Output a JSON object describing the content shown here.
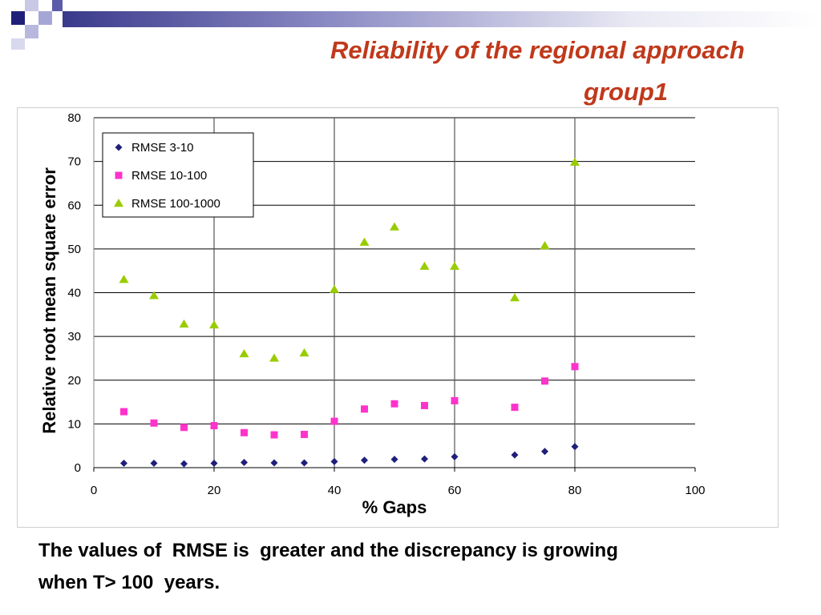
{
  "slide": {
    "title_line1": "Reliability of the regional approach",
    "title_line2": "group1",
    "caption": "The values of  RMSE is  greater and the discrepancy is growing\nwhen T> 100  years."
  },
  "colors": {
    "title": "#c0391b",
    "series_rmse_3_10": "#1f1f7a",
    "series_rmse_10_100": "#ff33cc",
    "series_rmse_100_1000": "#99cc00"
  },
  "chart_data": {
    "type": "scatter",
    "title": "",
    "xlabel": "% Gaps",
    "ylabel": "Relative root mean square error",
    "xlim": [
      0,
      100
    ],
    "ylim": [
      0,
      80
    ],
    "xticks": [
      0,
      20,
      40,
      60,
      80,
      100
    ],
    "yticks": [
      0,
      10,
      20,
      30,
      40,
      50,
      60,
      70,
      80
    ],
    "grid": true,
    "legend_position": "top-left",
    "series": [
      {
        "name": "RMSE 3-10",
        "marker": "diamond",
        "color": "#1f1f7a",
        "x": [
          5,
          10,
          15,
          20,
          25,
          30,
          35,
          40,
          45,
          50,
          55,
          60,
          70,
          75,
          80
        ],
        "y": [
          1.0,
          1.0,
          0.9,
          1.0,
          1.2,
          1.1,
          1.1,
          1.4,
          1.7,
          1.9,
          2.0,
          2.5,
          2.9,
          3.7,
          4.8
        ]
      },
      {
        "name": "RMSE 10-100",
        "marker": "square",
        "color": "#ff33cc",
        "x": [
          5,
          10,
          15,
          20,
          25,
          30,
          35,
          40,
          45,
          50,
          55,
          60,
          70,
          75,
          80
        ],
        "y": [
          12.8,
          10.2,
          9.2,
          9.6,
          8.0,
          7.5,
          7.6,
          10.6,
          13.4,
          14.6,
          14.2,
          15.3,
          13.8,
          19.8,
          23.1
        ]
      },
      {
        "name": "RMSE 100-1000",
        "marker": "triangle",
        "color": "#99cc00",
        "x": [
          5,
          10,
          15,
          20,
          25,
          30,
          35,
          40,
          45,
          50,
          55,
          60,
          70,
          75,
          80
        ],
        "y": [
          43.0,
          39.3,
          32.8,
          32.6,
          26.0,
          25.0,
          26.2,
          40.7,
          51.5,
          55.0,
          46.0,
          46.0,
          38.8,
          50.7,
          69.8
        ]
      }
    ]
  }
}
